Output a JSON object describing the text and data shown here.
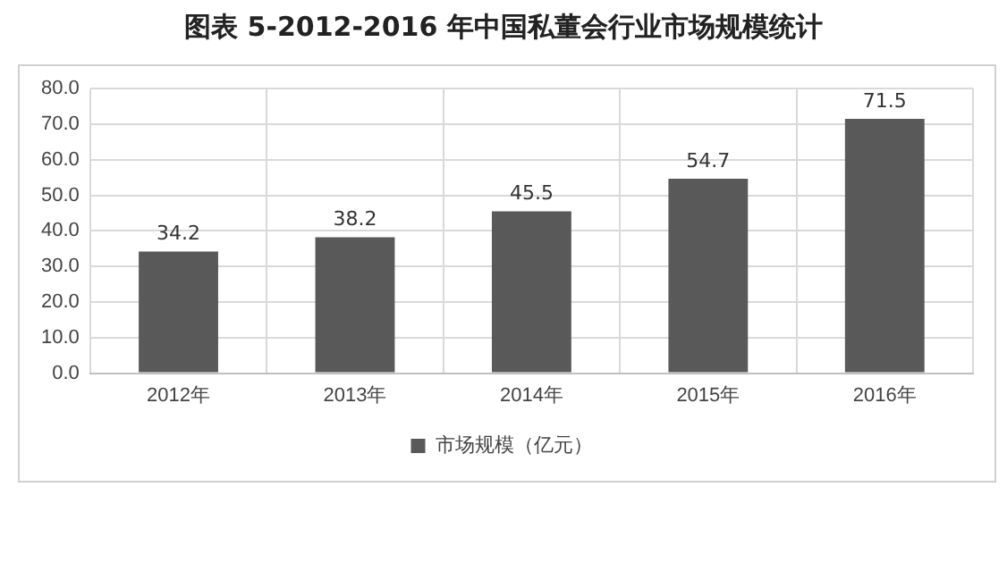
{
  "chart_data": {
    "type": "bar",
    "title": "图表 5-2012-2016 年中国私董会行业市场规模统计",
    "categories": [
      "2012年",
      "2013年",
      "2014年",
      "2015年",
      "2016年"
    ],
    "series": [
      {
        "name": "市场规模（亿元）",
        "color": "#595959",
        "values": [
          34.2,
          38.2,
          45.5,
          54.7,
          71.5
        ]
      }
    ],
    "ylim": [
      0,
      80
    ],
    "yticks": [
      {
        "value": 0,
        "label": "0.0"
      },
      {
        "value": 10,
        "label": "10.0"
      },
      {
        "value": 20,
        "label": "20.0"
      },
      {
        "value": 30,
        "label": "30.0"
      },
      {
        "value": 40,
        "label": "40.0"
      },
      {
        "value": 50,
        "label": "50.0"
      },
      {
        "value": 60,
        "label": "60.0"
      },
      {
        "value": 70,
        "label": "70.0"
      },
      {
        "value": 80,
        "label": "80.0"
      }
    ],
    "grid": true,
    "legend": "bottom",
    "data_labels": true
  }
}
